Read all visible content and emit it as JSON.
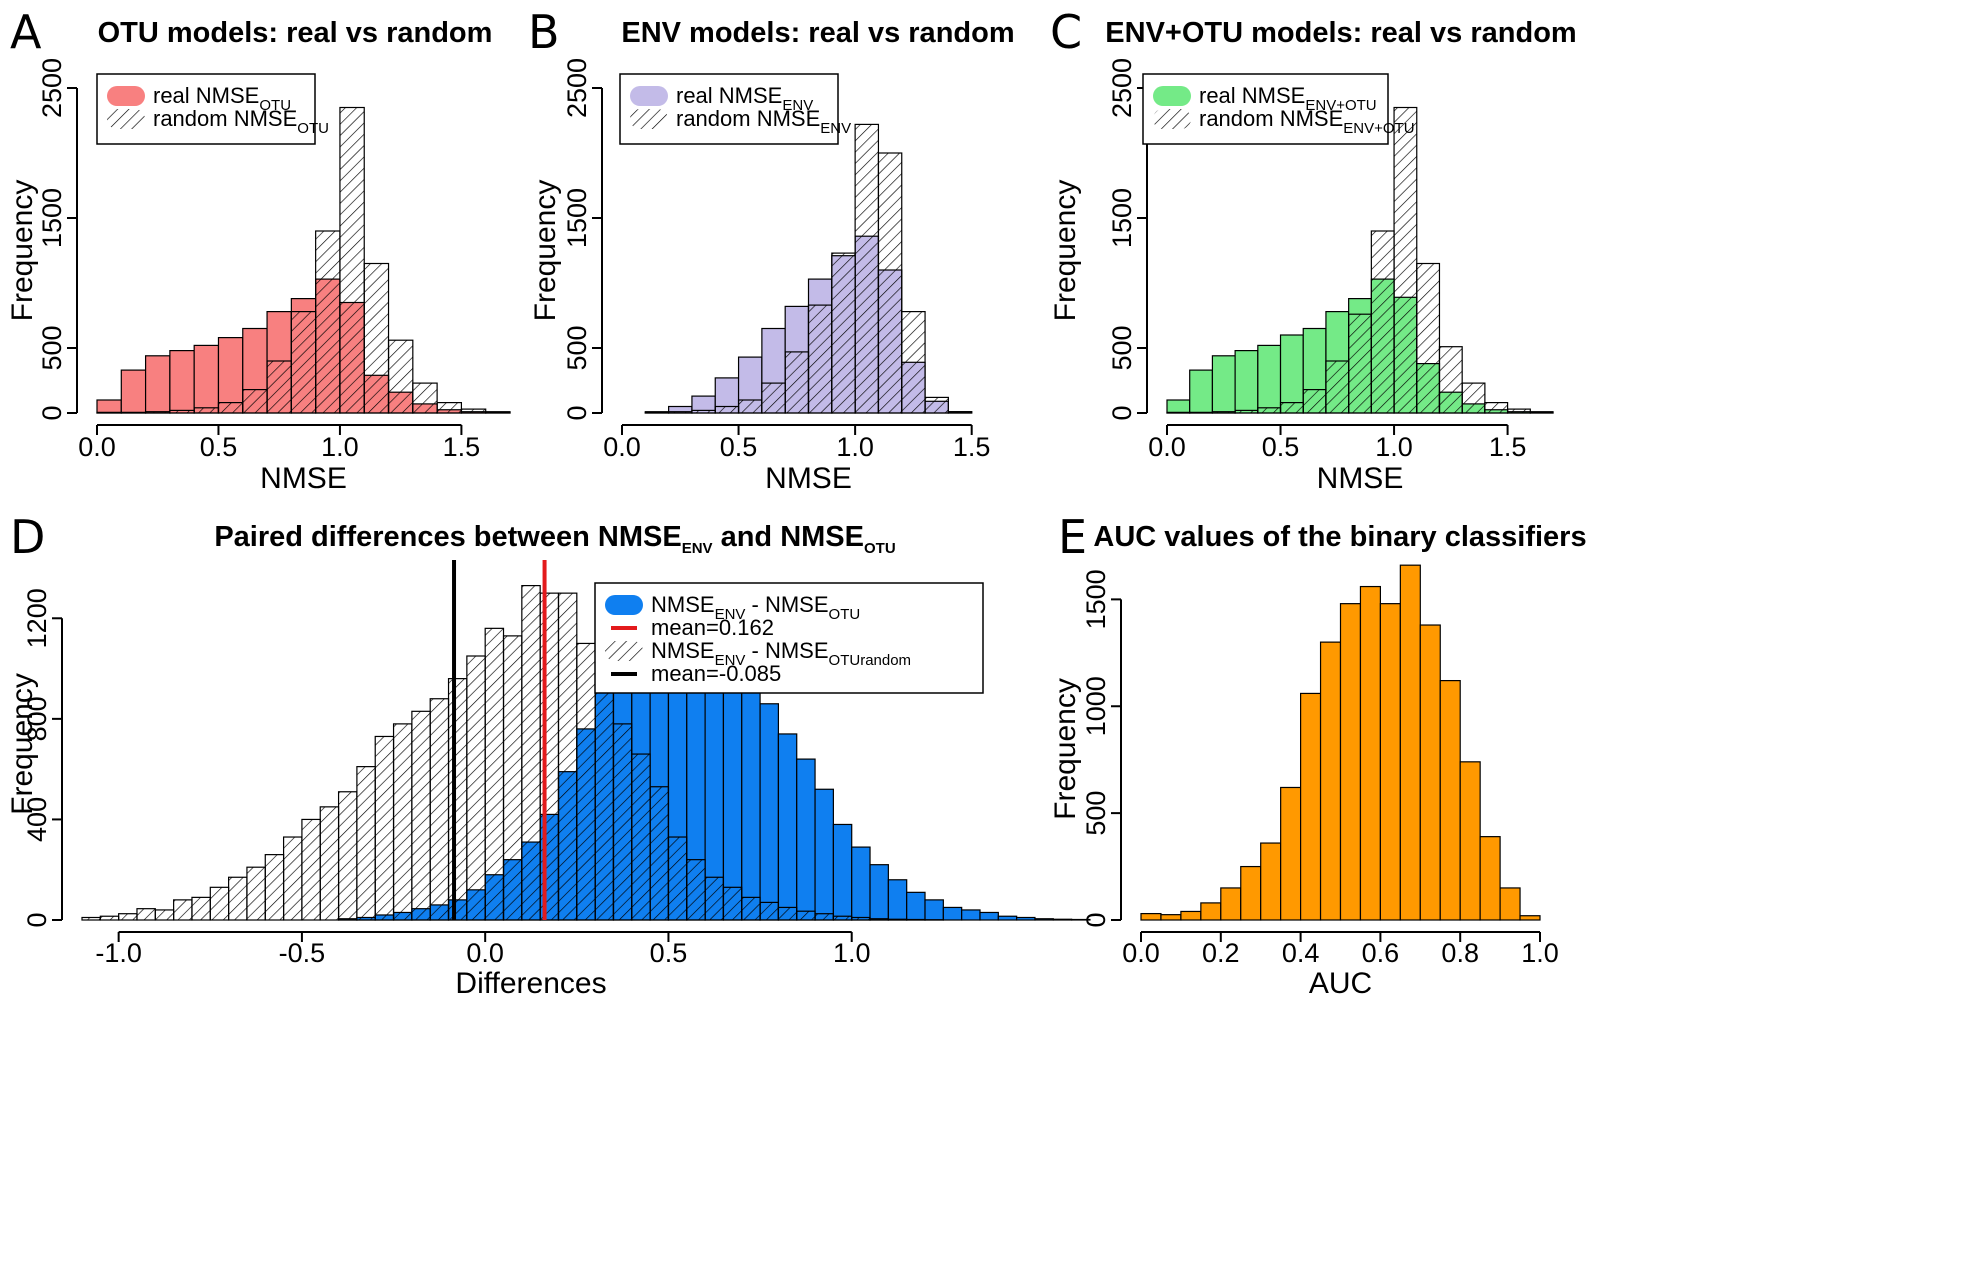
{
  "chart_data": [
    {
      "id": "A",
      "panel_letter": "A",
      "type": "bar",
      "title": "OTU models: real vs random",
      "xlabel": "NMSE",
      "ylabel": "Frequency",
      "xlim": [
        0,
        1.7
      ],
      "ylim": [
        0,
        2500
      ],
      "xticks": [
        0,
        0.5,
        1,
        1.5
      ],
      "xtick_labels": [
        "0.0",
        "0.5",
        "1.0",
        "1.5"
      ],
      "yticks": [
        0,
        500,
        1500,
        2500
      ],
      "ytick_labels": [
        "0",
        "500",
        "1500",
        "2500"
      ],
      "legend_position": "top-left",
      "bin_start": 0,
      "bin_width": 0.1,
      "series": [
        {
          "role": "real",
          "style": "solid",
          "color": "#f88080",
          "legend_prefix": "real NMSE",
          "legend_sub": "OTU",
          "values": [
            100,
            330,
            440,
            480,
            520,
            580,
            650,
            780,
            880,
            1030,
            850,
            290,
            160,
            70,
            25,
            10,
            5
          ]
        },
        {
          "role": "random",
          "style": "hatched",
          "legend_prefix": "random NMSE",
          "legend_sub": "OTU",
          "values": [
            5,
            5,
            10,
            20,
            40,
            80,
            180,
            400,
            780,
            1400,
            2350,
            1150,
            560,
            230,
            80,
            30,
            10
          ]
        }
      ]
    },
    {
      "id": "B",
      "panel_letter": "B",
      "type": "bar",
      "title": "ENV models: real vs random",
      "xlabel": "NMSE",
      "ylabel": "Frequency",
      "xlim": [
        0,
        1.6
      ],
      "ylim": [
        0,
        2500
      ],
      "xticks": [
        0,
        0.5,
        1,
        1.5
      ],
      "xtick_labels": [
        "0.0",
        "0.5",
        "1.0",
        "1.5"
      ],
      "yticks": [
        0,
        500,
        1500,
        2500
      ],
      "ytick_labels": [
        "0",
        "500",
        "1500",
        "2500"
      ],
      "legend_position": "top-left",
      "bin_start": 0.1,
      "bin_width": 0.1,
      "series": [
        {
          "role": "real",
          "style": "solid",
          "color": "#c3bbe8",
          "legend_prefix": "real NMSE",
          "legend_sub": "ENV",
          "values": [
            10,
            50,
            130,
            270,
            430,
            650,
            820,
            1030,
            1210,
            1360,
            1100,
            390,
            90,
            10
          ]
        },
        {
          "role": "random",
          "style": "hatched",
          "legend_prefix": "random NMSE",
          "legend_sub": "ENV",
          "values": [
            5,
            10,
            20,
            50,
            100,
            230,
            470,
            830,
            1230,
            2220,
            2000,
            780,
            120,
            10
          ]
        }
      ]
    },
    {
      "id": "C",
      "panel_letter": "C",
      "type": "bar",
      "title": "ENV+OTU models: real vs random",
      "xlabel": "NMSE",
      "ylabel": "Frequency",
      "xlim": [
        0,
        1.7
      ],
      "ylim": [
        0,
        2500
      ],
      "xticks": [
        0,
        0.5,
        1,
        1.5
      ],
      "xtick_labels": [
        "0.0",
        "0.5",
        "1.0",
        "1.5"
      ],
      "yticks": [
        0,
        500,
        1500,
        2500
      ],
      "ytick_labels": [
        "0",
        "500",
        "1500",
        "2500"
      ],
      "legend_position": "top-left",
      "bin_start": 0,
      "bin_width": 0.1,
      "series": [
        {
          "role": "real",
          "style": "solid",
          "color": "#74ea87",
          "legend_prefix": "real NMSE",
          "legend_sub": "ENV+OTU",
          "values": [
            100,
            330,
            440,
            480,
            520,
            600,
            650,
            780,
            880,
            1030,
            890,
            380,
            160,
            70,
            25,
            10,
            5
          ]
        },
        {
          "role": "random",
          "style": "hatched",
          "legend_prefix": "random NMSE",
          "legend_sub": "ENV+OTU",
          "values": [
            5,
            5,
            10,
            20,
            40,
            80,
            180,
            400,
            760,
            1400,
            2350,
            1150,
            510,
            230,
            80,
            30,
            10
          ]
        }
      ]
    },
    {
      "id": "D",
      "panel_letter": "D",
      "type": "bar",
      "title_prefix": "Paired differences between NMSE",
      "title_sub1": "ENV",
      "title_mid": " and NMSE",
      "title_sub2": "OTU",
      "xlabel": "Differences",
      "ylabel": "Frequency",
      "xlim": [
        -1.1,
        1.35
      ],
      "ylim": [
        0,
        1400
      ],
      "xticks": [
        -1,
        -0.5,
        0,
        0.5,
        1
      ],
      "xtick_labels": [
        "-1.0",
        "-0.5",
        "0.0",
        "0.5",
        "1.0"
      ],
      "yticks": [
        0,
        400,
        800,
        1200
      ],
      "ytick_labels": [
        "0",
        "400",
        "800",
        "1200"
      ],
      "legend_position": "top-right",
      "bin_start": -1.1,
      "bin_width": 0.05,
      "series": [
        {
          "role": "real",
          "style": "solid",
          "color": "#0f7ff0",
          "legend_prefix": "NMSE",
          "legend_sub1": "ENV",
          "legend_mid": " - NMSE",
          "legend_sub2": "OTU",
          "values": [
            0,
            0,
            0,
            0,
            0,
            0,
            0,
            0,
            0,
            0,
            0,
            0,
            0,
            0,
            5,
            10,
            20,
            30,
            45,
            60,
            80,
            120,
            180,
            240,
            310,
            420,
            590,
            760,
            930,
            1080,
            1210,
            1240,
            1300,
            1320,
            1260,
            1120,
            950,
            860,
            740,
            640,
            520,
            380,
            290,
            220,
            160,
            110,
            80,
            50,
            40,
            30,
            15,
            10,
            5,
            3,
            2,
            0,
            0,
            0,
            0,
            0,
            0,
            0,
            0,
            0,
            0,
            0,
            0
          ]
        },
        {
          "role": "random",
          "style": "hatched",
          "legend_prefix": "NMSE",
          "legend_sub1": "ENV",
          "legend_mid": " - NMSE",
          "legend_sub2": "OTUrandom",
          "values": [
            10,
            15,
            25,
            45,
            40,
            80,
            90,
            130,
            170,
            210,
            260,
            330,
            400,
            450,
            510,
            610,
            730,
            780,
            830,
            880,
            960,
            1050,
            1160,
            1130,
            1330,
            1300,
            1300,
            1100,
            960,
            780,
            660,
            530,
            330,
            240,
            170,
            130,
            90,
            70,
            50,
            35,
            25,
            15,
            10,
            5,
            3,
            2,
            1,
            0,
            0,
            0,
            0,
            0,
            0,
            0,
            0,
            0,
            0,
            0,
            0,
            0,
            0,
            0,
            0,
            0,
            0,
            0,
            0
          ]
        }
      ],
      "vlines": [
        {
          "role": "real-mean",
          "value": 0.162,
          "color": "#e31a1c",
          "label": "mean=0.162"
        },
        {
          "role": "random-mean",
          "value": -0.085,
          "color": "#000000",
          "label": "mean=-0.085"
        }
      ]
    },
    {
      "id": "E",
      "panel_letter": "E",
      "type": "bar",
      "title": "AUC values of the binary classifiers",
      "xlabel": "AUC",
      "ylabel": "Frequency",
      "xlim": [
        0,
        1
      ],
      "ylim": [
        0,
        1600
      ],
      "xticks": [
        0,
        0.2,
        0.4,
        0.6,
        0.8,
        1
      ],
      "xtick_labels": [
        "0.0",
        "0.2",
        "0.4",
        "0.6",
        "0.8",
        "1.0"
      ],
      "yticks": [
        0,
        500,
        1000,
        1500
      ],
      "ytick_labels": [
        "0",
        "500",
        "1000",
        "1500"
      ],
      "bin_start": 0,
      "bin_width": 0.05,
      "series": [
        {
          "role": "auc",
          "style": "solid",
          "color": "#ff9900",
          "values": [
            30,
            25,
            40,
            80,
            150,
            250,
            360,
            620,
            1060,
            1300,
            1480,
            1560,
            1480,
            1660,
            1380,
            1120,
            740,
            390,
            150,
            20
          ]
        }
      ]
    }
  ]
}
